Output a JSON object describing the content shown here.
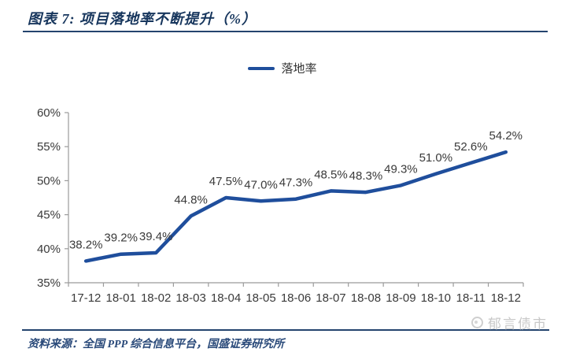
{
  "header": {
    "title": "图表 7:  项目落地率不断提升（%）"
  },
  "legend": {
    "label": "落地率"
  },
  "chart_data": {
    "type": "line",
    "title": "项目落地率不断提升（%）",
    "categories": [
      "17-12",
      "18-01",
      "18-02",
      "18-03",
      "18-04",
      "18-05",
      "18-06",
      "18-07",
      "18-08",
      "18-09",
      "18-10",
      "18-11",
      "18-12"
    ],
    "series": [
      {
        "name": "落地率",
        "values": [
          38.2,
          39.2,
          39.4,
          44.8,
          47.5,
          47.0,
          47.3,
          48.5,
          48.3,
          49.3,
          51.0,
          52.6,
          54.2
        ]
      }
    ],
    "data_labels": [
      "38.2%",
      "39.2%",
      "39.4%",
      "44.8%",
      "47.5%",
      "47.0%",
      "47.3%",
      "48.5%",
      "48.3%",
      "49.3%",
      "51.0%",
      "52.6%",
      "54.2%"
    ],
    "ylim": [
      35,
      60
    ],
    "ytick_step": 5,
    "ytick_labels": [
      "35%",
      "40%",
      "45%",
      "50%",
      "55%",
      "60%"
    ],
    "grid": false,
    "legend_position": "top-center",
    "line_color": "#1F4E9C"
  },
  "footer": {
    "source": "资料来源：全国 PPP 综合信息平台，国盛证券研究所",
    "watermark": "郁言债市"
  },
  "colors": {
    "accent_navy": "#17365D",
    "line_blue": "#1F4E9C",
    "axis_gray": "#9B9B9B",
    "data_label_dark": "#3A3A3A",
    "watermark_gray": "#C8C8C8"
  }
}
